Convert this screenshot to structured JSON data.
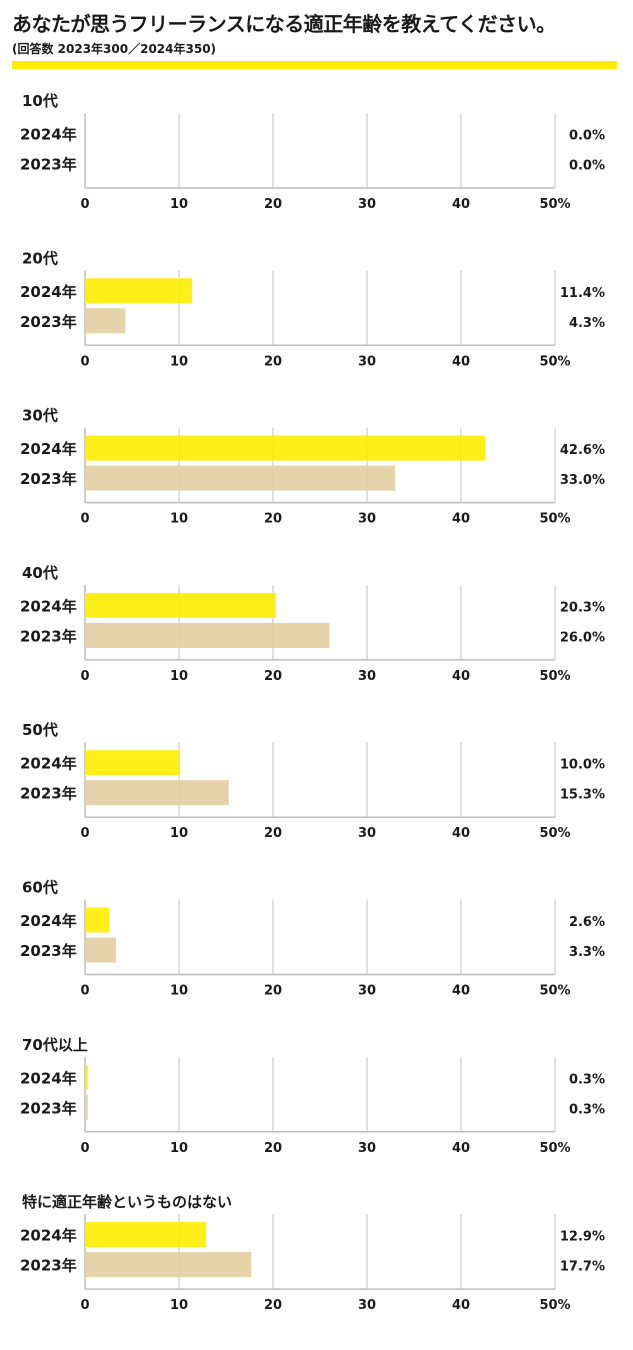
{
  "title": "あなたが思うフリーランスになる適正年齢を教えてください。",
  "subtitle": "(回答数 2023年300／2024年350)",
  "colors": {
    "y2024": "#ffed00",
    "y2023": "#e2cfa0",
    "grid": "#d6d6d6",
    "axis": "#bdbdbd",
    "accent": "#ffed00"
  },
  "chart_data": {
    "type": "bar",
    "orientation": "horizontal",
    "xlim": [
      0,
      50
    ],
    "ticks": [
      0,
      10,
      20,
      30,
      40,
      50
    ],
    "tick_labels": [
      "0",
      "10",
      "20",
      "30",
      "40",
      "50%"
    ],
    "series_names": [
      "2024年",
      "2023年"
    ],
    "groups": [
      {
        "label": "10代",
        "values": [
          0.0,
          0.0
        ],
        "value_labels": [
          "0.0%",
          "0.0%"
        ]
      },
      {
        "label": "20代",
        "values": [
          11.4,
          4.3
        ],
        "value_labels": [
          "11.4%",
          "4.3%"
        ]
      },
      {
        "label": "30代",
        "values": [
          42.6,
          33.0
        ],
        "value_labels": [
          "42.6%",
          "33.0%"
        ]
      },
      {
        "label": "40代",
        "values": [
          20.3,
          26.0
        ],
        "value_labels": [
          "20.3%",
          "26.0%"
        ]
      },
      {
        "label": "50代",
        "values": [
          10.0,
          15.3
        ],
        "value_labels": [
          "10.0%",
          "15.3%"
        ]
      },
      {
        "label": "60代",
        "values": [
          2.6,
          3.3
        ],
        "value_labels": [
          "2.6%",
          "3.3%"
        ]
      },
      {
        "label": "70代以上",
        "values": [
          0.3,
          0.3
        ],
        "value_labels": [
          "0.3%",
          "0.3%"
        ]
      },
      {
        "label": "特に適正年齢というものはない",
        "values": [
          12.9,
          17.7
        ],
        "value_labels": [
          "12.9%",
          "17.7%"
        ]
      }
    ]
  }
}
